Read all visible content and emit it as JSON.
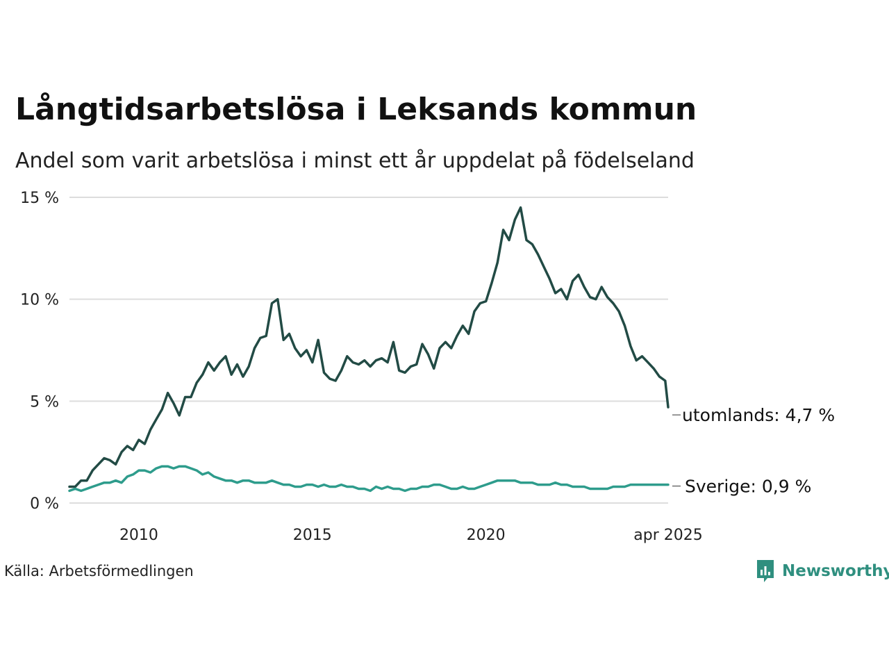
{
  "colors": {
    "utomlands": "#224b45",
    "sverige": "#2e9c8c",
    "grid": "#dddddd",
    "logo": "#2f8f7f"
  },
  "source": "Källa: Arbetsförmedlingen",
  "logo": {
    "text": "Newsworthy",
    "icon": "newsworthy-chart-bubble-icon"
  },
  "chart_data": {
    "type": "line",
    "title": "Långtidsarbetslösa i Leksands kommun",
    "subtitle": "Andel som varit arbetslösa i minst ett år uppdelat på födelseland",
    "xlabel": "",
    "ylabel": "",
    "ylim": [
      0,
      15
    ],
    "xlim": [
      "2008-01",
      "2025-04"
    ],
    "y_ticks": [
      {
        "value": 0,
        "label": "0 %"
      },
      {
        "value": 5,
        "label": "5 %"
      },
      {
        "value": 10,
        "label": "10 %"
      },
      {
        "value": 15,
        "label": "15 %"
      }
    ],
    "x_ticks": [
      {
        "date": "2010-01",
        "label": "2010"
      },
      {
        "date": "2015-01",
        "label": "2015"
      },
      {
        "date": "2020-01",
        "label": "2020"
      },
      {
        "date": "2025-04",
        "label": "apr 2025"
      }
    ],
    "grid": "horizontal",
    "legend": "none",
    "series": [
      {
        "name": "utomlands",
        "end_label": "utomlands: 4,7 %",
        "points": [
          [
            "2008-01",
            0.8
          ],
          [
            "2008-03",
            0.8
          ],
          [
            "2008-05",
            1.1
          ],
          [
            "2008-07",
            1.1
          ],
          [
            "2008-09",
            1.6
          ],
          [
            "2008-11",
            1.9
          ],
          [
            "2009-01",
            2.2
          ],
          [
            "2009-03",
            2.1
          ],
          [
            "2009-05",
            1.9
          ],
          [
            "2009-07",
            2.5
          ],
          [
            "2009-09",
            2.8
          ],
          [
            "2009-11",
            2.6
          ],
          [
            "2010-01",
            3.1
          ],
          [
            "2010-03",
            2.9
          ],
          [
            "2010-05",
            3.6
          ],
          [
            "2010-07",
            4.1
          ],
          [
            "2010-09",
            4.6
          ],
          [
            "2010-11",
            5.4
          ],
          [
            "2011-01",
            4.9
          ],
          [
            "2011-03",
            4.3
          ],
          [
            "2011-05",
            5.2
          ],
          [
            "2011-07",
            5.2
          ],
          [
            "2011-09",
            5.9
          ],
          [
            "2011-11",
            6.3
          ],
          [
            "2012-01",
            6.9
          ],
          [
            "2012-03",
            6.5
          ],
          [
            "2012-05",
            6.9
          ],
          [
            "2012-07",
            7.2
          ],
          [
            "2012-09",
            6.3
          ],
          [
            "2012-11",
            6.8
          ],
          [
            "2013-01",
            6.2
          ],
          [
            "2013-03",
            6.7
          ],
          [
            "2013-05",
            7.6
          ],
          [
            "2013-07",
            8.1
          ],
          [
            "2013-09",
            8.2
          ],
          [
            "2013-11",
            9.8
          ],
          [
            "2014-01",
            10.0
          ],
          [
            "2014-03",
            8.0
          ],
          [
            "2014-05",
            8.3
          ],
          [
            "2014-07",
            7.6
          ],
          [
            "2014-09",
            7.2
          ],
          [
            "2014-11",
            7.5
          ],
          [
            "2015-01",
            6.9
          ],
          [
            "2015-03",
            8.0
          ],
          [
            "2015-05",
            6.4
          ],
          [
            "2015-07",
            6.1
          ],
          [
            "2015-09",
            6.0
          ],
          [
            "2015-11",
            6.5
          ],
          [
            "2016-01",
            7.2
          ],
          [
            "2016-03",
            6.9
          ],
          [
            "2016-05",
            6.8
          ],
          [
            "2016-07",
            7.0
          ],
          [
            "2016-09",
            6.7
          ],
          [
            "2016-11",
            7.0
          ],
          [
            "2017-01",
            7.1
          ],
          [
            "2017-03",
            6.9
          ],
          [
            "2017-05",
            7.9
          ],
          [
            "2017-07",
            6.5
          ],
          [
            "2017-09",
            6.4
          ],
          [
            "2017-11",
            6.7
          ],
          [
            "2018-01",
            6.8
          ],
          [
            "2018-03",
            7.8
          ],
          [
            "2018-05",
            7.3
          ],
          [
            "2018-07",
            6.6
          ],
          [
            "2018-09",
            7.6
          ],
          [
            "2018-11",
            7.9
          ],
          [
            "2019-01",
            7.6
          ],
          [
            "2019-03",
            8.2
          ],
          [
            "2019-05",
            8.7
          ],
          [
            "2019-07",
            8.3
          ],
          [
            "2019-09",
            9.4
          ],
          [
            "2019-11",
            9.8
          ],
          [
            "2020-01",
            9.9
          ],
          [
            "2020-03",
            10.8
          ],
          [
            "2020-05",
            11.8
          ],
          [
            "2020-07",
            13.4
          ],
          [
            "2020-09",
            12.9
          ],
          [
            "2020-11",
            13.9
          ],
          [
            "2021-01",
            14.5
          ],
          [
            "2021-03",
            12.9
          ],
          [
            "2021-05",
            12.7
          ],
          [
            "2021-07",
            12.2
          ],
          [
            "2021-09",
            11.6
          ],
          [
            "2021-11",
            11.0
          ],
          [
            "2022-01",
            10.3
          ],
          [
            "2022-03",
            10.5
          ],
          [
            "2022-05",
            10.0
          ],
          [
            "2022-07",
            10.9
          ],
          [
            "2022-09",
            11.2
          ],
          [
            "2022-11",
            10.6
          ],
          [
            "2023-01",
            10.1
          ],
          [
            "2023-03",
            10.0
          ],
          [
            "2023-05",
            10.6
          ],
          [
            "2023-07",
            10.1
          ],
          [
            "2023-09",
            9.8
          ],
          [
            "2023-11",
            9.4
          ],
          [
            "2024-01",
            8.7
          ],
          [
            "2024-03",
            7.7
          ],
          [
            "2024-05",
            7.0
          ],
          [
            "2024-07",
            7.2
          ],
          [
            "2024-09",
            6.9
          ],
          [
            "2024-11",
            6.6
          ],
          [
            "2025-01",
            6.2
          ],
          [
            "2025-03",
            6.0
          ],
          [
            "2025-04",
            4.7
          ]
        ]
      },
      {
        "name": "Sverige",
        "end_label": "Sverige: 0,9 %",
        "points": [
          [
            "2008-01",
            0.6
          ],
          [
            "2008-03",
            0.7
          ],
          [
            "2008-05",
            0.6
          ],
          [
            "2008-07",
            0.7
          ],
          [
            "2008-09",
            0.8
          ],
          [
            "2008-11",
            0.9
          ],
          [
            "2009-01",
            1.0
          ],
          [
            "2009-03",
            1.0
          ],
          [
            "2009-05",
            1.1
          ],
          [
            "2009-07",
            1.0
          ],
          [
            "2009-09",
            1.3
          ],
          [
            "2009-11",
            1.4
          ],
          [
            "2010-01",
            1.6
          ],
          [
            "2010-03",
            1.6
          ],
          [
            "2010-05",
            1.5
          ],
          [
            "2010-07",
            1.7
          ],
          [
            "2010-09",
            1.8
          ],
          [
            "2010-11",
            1.8
          ],
          [
            "2011-01",
            1.7
          ],
          [
            "2011-03",
            1.8
          ],
          [
            "2011-05",
            1.8
          ],
          [
            "2011-07",
            1.7
          ],
          [
            "2011-09",
            1.6
          ],
          [
            "2011-11",
            1.4
          ],
          [
            "2012-01",
            1.5
          ],
          [
            "2012-03",
            1.3
          ],
          [
            "2012-05",
            1.2
          ],
          [
            "2012-07",
            1.1
          ],
          [
            "2012-09",
            1.1
          ],
          [
            "2012-11",
            1.0
          ],
          [
            "2013-01",
            1.1
          ],
          [
            "2013-03",
            1.1
          ],
          [
            "2013-05",
            1.0
          ],
          [
            "2013-07",
            1.0
          ],
          [
            "2013-09",
            1.0
          ],
          [
            "2013-11",
            1.1
          ],
          [
            "2014-01",
            1.0
          ],
          [
            "2014-03",
            0.9
          ],
          [
            "2014-05",
            0.9
          ],
          [
            "2014-07",
            0.8
          ],
          [
            "2014-09",
            0.8
          ],
          [
            "2014-11",
            0.9
          ],
          [
            "2015-01",
            0.9
          ],
          [
            "2015-03",
            0.8
          ],
          [
            "2015-05",
            0.9
          ],
          [
            "2015-07",
            0.8
          ],
          [
            "2015-09",
            0.8
          ],
          [
            "2015-11",
            0.9
          ],
          [
            "2016-01",
            0.8
          ],
          [
            "2016-03",
            0.8
          ],
          [
            "2016-05",
            0.7
          ],
          [
            "2016-07",
            0.7
          ],
          [
            "2016-09",
            0.6
          ],
          [
            "2016-11",
            0.8
          ],
          [
            "2017-01",
            0.7
          ],
          [
            "2017-03",
            0.8
          ],
          [
            "2017-05",
            0.7
          ],
          [
            "2017-07",
            0.7
          ],
          [
            "2017-09",
            0.6
          ],
          [
            "2017-11",
            0.7
          ],
          [
            "2018-01",
            0.7
          ],
          [
            "2018-03",
            0.8
          ],
          [
            "2018-05",
            0.8
          ],
          [
            "2018-07",
            0.9
          ],
          [
            "2018-09",
            0.9
          ],
          [
            "2018-11",
            0.8
          ],
          [
            "2019-01",
            0.7
          ],
          [
            "2019-03",
            0.7
          ],
          [
            "2019-05",
            0.8
          ],
          [
            "2019-07",
            0.7
          ],
          [
            "2019-09",
            0.7
          ],
          [
            "2019-11",
            0.8
          ],
          [
            "2020-01",
            0.9
          ],
          [
            "2020-03",
            1.0
          ],
          [
            "2020-05",
            1.1
          ],
          [
            "2020-07",
            1.1
          ],
          [
            "2020-09",
            1.1
          ],
          [
            "2020-11",
            1.1
          ],
          [
            "2021-01",
            1.0
          ],
          [
            "2021-03",
            1.0
          ],
          [
            "2021-05",
            1.0
          ],
          [
            "2021-07",
            0.9
          ],
          [
            "2021-09",
            0.9
          ],
          [
            "2021-11",
            0.9
          ],
          [
            "2022-01",
            1.0
          ],
          [
            "2022-03",
            0.9
          ],
          [
            "2022-05",
            0.9
          ],
          [
            "2022-07",
            0.8
          ],
          [
            "2022-09",
            0.8
          ],
          [
            "2022-11",
            0.8
          ],
          [
            "2023-01",
            0.7
          ],
          [
            "2023-03",
            0.7
          ],
          [
            "2023-05",
            0.7
          ],
          [
            "2023-07",
            0.7
          ],
          [
            "2023-09",
            0.8
          ],
          [
            "2023-11",
            0.8
          ],
          [
            "2024-01",
            0.8
          ],
          [
            "2024-03",
            0.9
          ],
          [
            "2024-05",
            0.9
          ],
          [
            "2024-07",
            0.9
          ],
          [
            "2024-09",
            0.9
          ],
          [
            "2024-11",
            0.9
          ],
          [
            "2025-01",
            0.9
          ],
          [
            "2025-03",
            0.9
          ],
          [
            "2025-04",
            0.9
          ]
        ]
      }
    ]
  }
}
